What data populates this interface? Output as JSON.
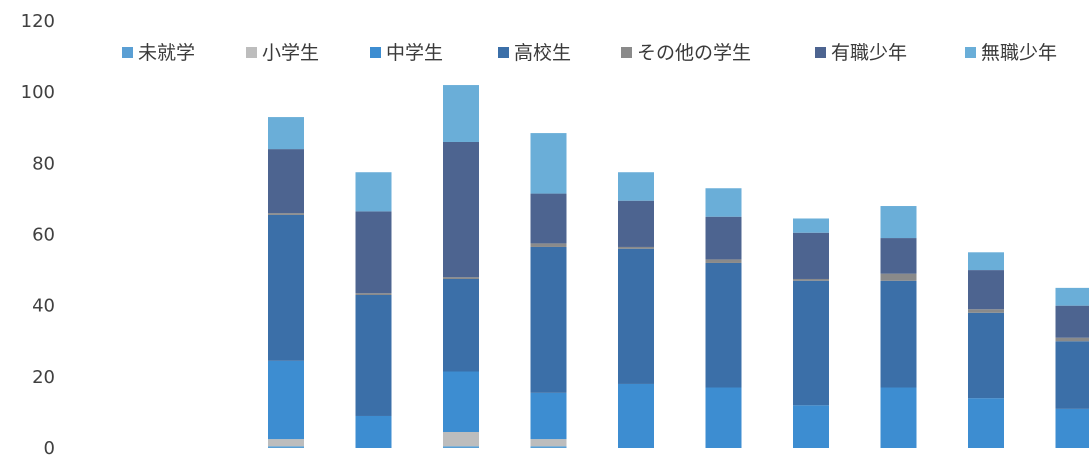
{
  "chart_data": {
    "type": "bar",
    "stacked": true,
    "title": "",
    "xlabel": "",
    "ylabel": "",
    "ylim": [
      0,
      120
    ],
    "yticks": [
      0,
      20,
      40,
      60,
      80,
      100,
      120
    ],
    "grid": false,
    "legend_position": "top",
    "categories": [
      "",
      "",
      "",
      "",
      "",
      "",
      "",
      "",
      "",
      ""
    ],
    "series": [
      {
        "name": "未就学",
        "color": "#5a9fd4",
        "values": [
          0.5,
          0,
          0.5,
          0.5,
          0,
          0,
          0,
          0,
          0,
          0
        ]
      },
      {
        "name": "小学生",
        "color": "#bdbdbd",
        "values": [
          2,
          0,
          4,
          2,
          0,
          0,
          0,
          0,
          0,
          0
        ]
      },
      {
        "name": "中学生",
        "color": "#3d8dd1",
        "values": [
          22,
          9,
          17,
          13,
          18,
          17,
          12,
          17,
          14,
          11
        ]
      },
      {
        "name": "高校生",
        "color": "#3b6fa8",
        "values": [
          41,
          34,
          26,
          41,
          38,
          35,
          35,
          30,
          24,
          19
        ]
      },
      {
        "name": "その他の学生",
        "color": "#8a8a8a",
        "values": [
          0.5,
          0.5,
          0.5,
          1,
          0.5,
          1,
          0.5,
          2,
          1,
          1
        ]
      },
      {
        "name": "有職少年",
        "color": "#4d6490",
        "values": [
          18,
          23,
          38,
          14,
          13,
          12,
          13,
          10,
          11,
          9
        ]
      },
      {
        "name": "無職少年",
        "color": "#6aaed8",
        "values": [
          9,
          11,
          16,
          17,
          8,
          8,
          4,
          9,
          5,
          5
        ]
      }
    ]
  }
}
